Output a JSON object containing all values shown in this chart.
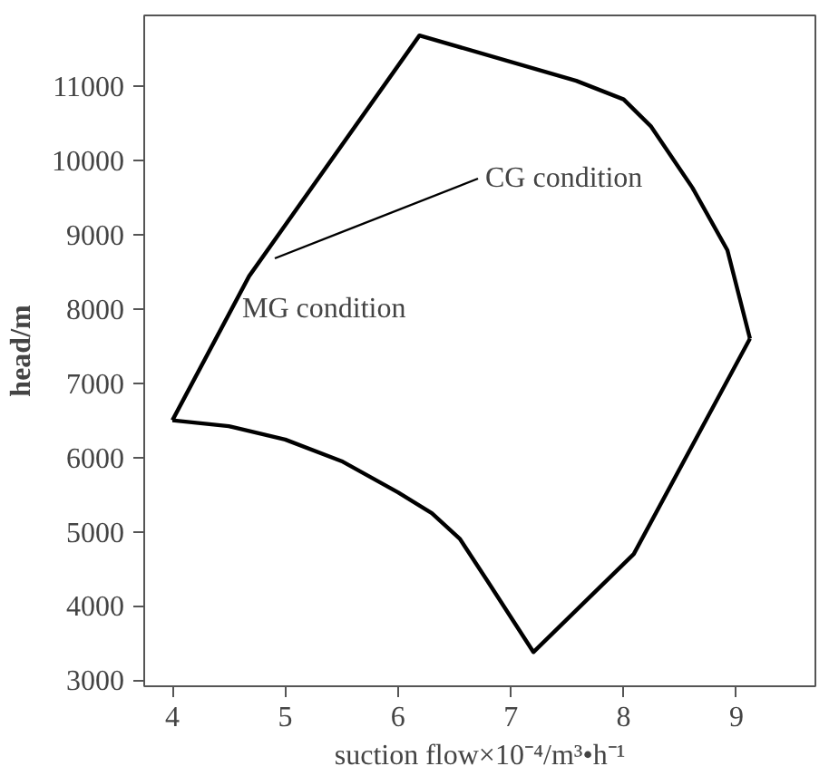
{
  "chart_data": {
    "type": "line",
    "xlabel": "suction flow×10⁻⁴/m³•h⁻¹",
    "ylabel": "head/m",
    "series": [
      {
        "color": "#000000",
        "x": [
          4.0,
          4.5,
          5.0,
          5.5,
          6.0,
          6.3,
          6.55,
          6.8,
          7.0,
          7.2,
          8.09,
          9.12
        ],
        "values": [
          6500,
          6420,
          6240,
          5950,
          5530,
          5250,
          4900,
          4320,
          3850,
          3380,
          4700,
          7600
        ]
      },
      {
        "color": "#000000",
        "x": [
          4.0,
          4.68,
          6.19,
          7.58,
          8.0,
          8.24,
          8.61,
          8.92,
          9.12
        ],
        "values": [
          6500,
          8440,
          11680,
          11070,
          10820,
          10460,
          9630,
          8790,
          7600
        ]
      }
    ],
    "xlim": [
      3.75,
      9.7
    ],
    "ylim": [
      2920,
      11950
    ],
    "xticks": [
      4,
      5,
      6,
      7,
      8,
      9
    ],
    "yticks": [
      3000,
      4000,
      5000,
      6000,
      7000,
      8000,
      9000,
      10000,
      11000
    ],
    "grid": false,
    "marker": "none",
    "line_style": "solid",
    "annotations": [
      "CG condition",
      "MG condition"
    ]
  }
}
